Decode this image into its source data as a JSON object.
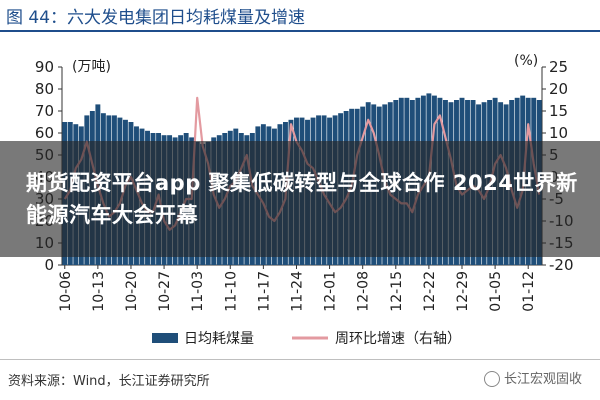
{
  "title": "图 44：六大发电集团日均耗煤量及增速",
  "overlay_text": "期货配资平台app 聚集低碳转型与全球合作 2024世界新能源汽车大会开幕",
  "source": "资料来源：Wind，长江证券研究所",
  "watermark": "长江宏观固收",
  "colors": {
    "bar": "#1f4e79",
    "line": "#e39aa0",
    "title": "#1f4e8c"
  },
  "chart_data": {
    "type": "bar+line",
    "left_axis": {
      "unit": "(万吨)",
      "ylim": [
        0,
        90
      ],
      "ticks": [
        "0",
        "10",
        "20",
        "30",
        "40",
        "50",
        "60",
        "70",
        "80",
        "90"
      ]
    },
    "right_axis": {
      "unit": "(%)",
      "ylim": [
        -20,
        25
      ],
      "ticks": [
        "-20",
        "-15",
        "-10",
        "-5",
        "0",
        "5",
        "10",
        "15",
        "20",
        "25"
      ]
    },
    "x_tick_labels": [
      "10-06",
      "10-13",
      "10-20",
      "10-27",
      "11-03",
      "11-10",
      "11-17",
      "11-24",
      "12-01",
      "12-08",
      "12-15",
      "12-22",
      "12-29",
      "01-05",
      "01-12"
    ],
    "x_ticks_index": [
      0,
      6,
      12,
      18,
      24,
      30,
      36,
      42,
      48,
      54,
      60,
      66,
      72,
      78,
      84
    ],
    "legend": [
      {
        "label": "日均耗煤量",
        "kind": "bar"
      },
      {
        "label": "周环比增速（右轴）",
        "kind": "line"
      }
    ],
    "series": [
      {
        "name": "日均耗煤量",
        "axis": "left",
        "type": "bar",
        "values": [
          65,
          65,
          64,
          63,
          68,
          70,
          73,
          69,
          68,
          68,
          67,
          66,
          65,
          63,
          62,
          61,
          60,
          60,
          59,
          59,
          58,
          59,
          60,
          58,
          56,
          55,
          56,
          58,
          59,
          60,
          61,
          62,
          60,
          59,
          60,
          63,
          64,
          63,
          62,
          64,
          65,
          66,
          67,
          67,
          66,
          67,
          68,
          68,
          67,
          68,
          69,
          70,
          71,
          71,
          72,
          74,
          73,
          72,
          73,
          74,
          75,
          76,
          76,
          75,
          76,
          77,
          78,
          77,
          76,
          75,
          74,
          75,
          76,
          75,
          75,
          73,
          74,
          75,
          76,
          74,
          73,
          75,
          76,
          77,
          76,
          76,
          75
        ]
      },
      {
        "name": "周环比增速（右轴）",
        "axis": "right",
        "type": "line",
        "values": [
          -5,
          -3,
          2,
          4,
          8,
          3,
          -2,
          -6,
          -9,
          -8,
          -6,
          -2,
          0,
          -3,
          -6,
          -8,
          -8,
          -4,
          -10,
          -12,
          -11,
          -8,
          -5,
          -5,
          18,
          7,
          3,
          -4,
          -7,
          -5,
          -2,
          -1,
          2,
          5,
          -2,
          -4,
          -6,
          -9,
          -10,
          -8,
          -5,
          12,
          8,
          6,
          3,
          2,
          -1,
          -4,
          -6,
          -8,
          -7,
          -5,
          -2,
          5,
          9,
          13,
          10,
          5,
          -1,
          -4,
          -5,
          -6,
          -6,
          -8,
          -4,
          -2,
          0,
          12,
          14,
          9,
          4,
          -2,
          -4,
          -3,
          -2,
          -3,
          -5,
          -2,
          3,
          5,
          2,
          -3,
          -7,
          -3,
          12,
          3,
          -4
        ]
      }
    ]
  }
}
